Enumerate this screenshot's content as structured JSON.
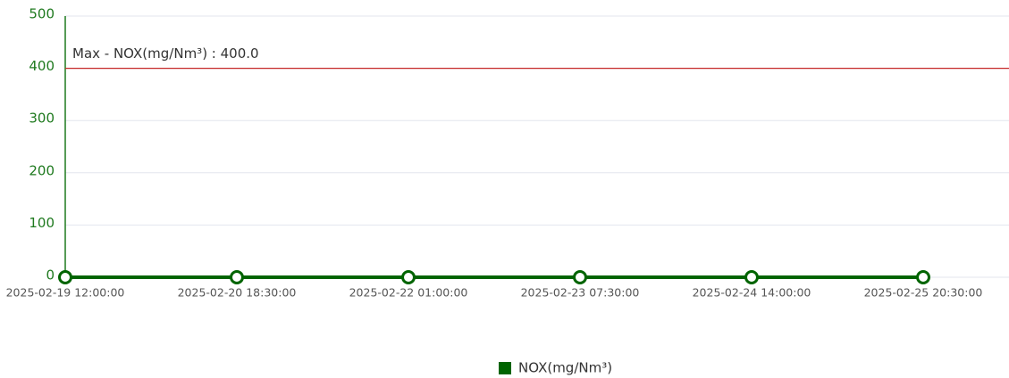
{
  "chart_data": {
    "type": "line",
    "categories": [
      "2025-02-19 12:00:00",
      "2025-02-20 18:30:00",
      "2025-02-22 01:00:00",
      "2025-02-23 07:30:00",
      "2025-02-24 14:00:00",
      "2025-02-25 20:30:00"
    ],
    "series": [
      {
        "name": "NOX(mg/Nm³)",
        "color": "#006400",
        "values": [
          0,
          0,
          0,
          0,
          0,
          0
        ]
      }
    ],
    "ylim": [
      0,
      500
    ],
    "yticks": [
      0,
      100,
      200,
      300,
      400,
      500
    ],
    "grid": true,
    "annotations": [
      {
        "label": "Max - NOX(mg/Nm³) : 400.0",
        "value": 400,
        "color": "#c62828"
      }
    ],
    "legend": "bottom"
  }
}
